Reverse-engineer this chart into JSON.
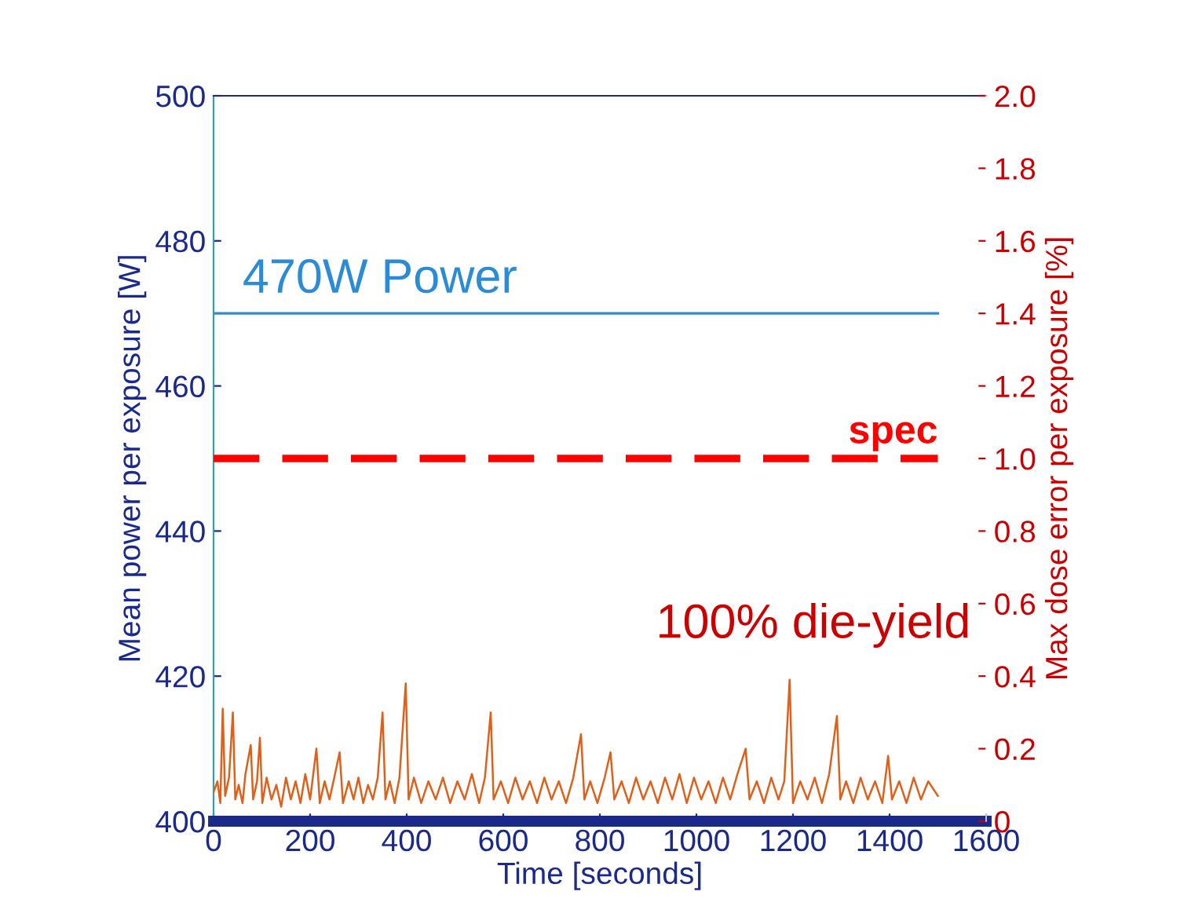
{
  "chart_data": {
    "type": "line",
    "xlabel": "Time [seconds]",
    "ylabel": "Mean power per exposure [W]",
    "y2label": "Max dose error per exposure [%]",
    "xlim": [
      0,
      1600
    ],
    "xticks": [
      0,
      200,
      400,
      600,
      800,
      1000,
      1200,
      1400,
      1600
    ],
    "ylim": [
      400,
      500
    ],
    "yticks": [
      400,
      420,
      440,
      460,
      480,
      500
    ],
    "y2lim": [
      0,
      2.0
    ],
    "y2ticks": [
      {
        "value": 0,
        "label": "0"
      },
      {
        "value": 0.2,
        "label": "0.2"
      },
      {
        "value": 0.4,
        "label": "0.4"
      },
      {
        "value": 0.6,
        "label": "0.6"
      },
      {
        "value": 0.8,
        "label": "0.8"
      },
      {
        "value": 1.0,
        "label": "1.0"
      },
      {
        "value": 1.2,
        "label": "1.2"
      },
      {
        "value": 1.4,
        "label": "1.4"
      },
      {
        "value": 1.6,
        "label": "1.6"
      },
      {
        "value": 1.8,
        "label": "1.8"
      },
      {
        "value": 2.0,
        "label": "2.0"
      }
    ],
    "grid": false,
    "marker": "none",
    "line_style": "solid",
    "series": [
      {
        "name": "470W Power",
        "color": "#2a8bd6",
        "x": [
          0,
          1500
        ],
        "values": [
          470,
          470
        ]
      },
      {
        "color": "#e0601a",
        "axis": "y2",
        "x": [
          0,
          8,
          14,
          19,
          24,
          32,
          40,
          45,
          52,
          60,
          66,
          77,
          82,
          90,
          96,
          101,
          110,
          120,
          130,
          140,
          150,
          160,
          170,
          180,
          190,
          200,
          213,
          220,
          230,
          240,
          250,
          261,
          268,
          280,
          290,
          300,
          310,
          320,
          330,
          340,
          350,
          356,
          365,
          375,
          385,
          398,
          404,
          415,
          430,
          445,
          460,
          475,
          490,
          505,
          520,
          535,
          550,
          562,
          574,
          580,
          595,
          610,
          625,
          640,
          655,
          670,
          685,
          700,
          715,
          730,
          745,
          761,
          768,
          780,
          795,
          810,
          822,
          830,
          845,
          860,
          875,
          890,
          905,
          920,
          935,
          950,
          965,
          980,
          995,
          1010,
          1025,
          1040,
          1055,
          1070,
          1085,
          1102,
          1110,
          1125,
          1140,
          1155,
          1170,
          1182,
          1193,
          1200,
          1215,
          1230,
          1245,
          1260,
          1275,
          1291,
          1298,
          1310,
          1325,
          1340,
          1355,
          1370,
          1385,
          1397,
          1405,
          1420,
          1435,
          1450,
          1465,
          1480,
          1500
        ],
        "values": [
          0.08,
          0.11,
          0.05,
          0.31,
          0.07,
          0.12,
          0.3,
          0.06,
          0.1,
          0.05,
          0.13,
          0.21,
          0.06,
          0.11,
          0.23,
          0.05,
          0.12,
          0.06,
          0.1,
          0.04,
          0.12,
          0.06,
          0.11,
          0.05,
          0.13,
          0.06,
          0.2,
          0.05,
          0.11,
          0.06,
          0.12,
          0.19,
          0.05,
          0.11,
          0.06,
          0.12,
          0.05,
          0.1,
          0.06,
          0.12,
          0.3,
          0.06,
          0.11,
          0.05,
          0.12,
          0.38,
          0.06,
          0.12,
          0.05,
          0.11,
          0.06,
          0.12,
          0.05,
          0.11,
          0.06,
          0.13,
          0.05,
          0.12,
          0.3,
          0.06,
          0.11,
          0.05,
          0.12,
          0.06,
          0.11,
          0.05,
          0.12,
          0.06,
          0.11,
          0.05,
          0.12,
          0.24,
          0.06,
          0.11,
          0.05,
          0.12,
          0.19,
          0.06,
          0.11,
          0.05,
          0.12,
          0.06,
          0.11,
          0.05,
          0.12,
          0.06,
          0.13,
          0.05,
          0.12,
          0.06,
          0.11,
          0.05,
          0.12,
          0.06,
          0.13,
          0.2,
          0.06,
          0.11,
          0.05,
          0.12,
          0.06,
          0.11,
          0.39,
          0.05,
          0.11,
          0.06,
          0.12,
          0.05,
          0.13,
          0.29,
          0.06,
          0.11,
          0.05,
          0.12,
          0.06,
          0.11,
          0.05,
          0.18,
          0.06,
          0.11,
          0.05,
          0.12,
          0.06,
          0.11,
          0.07
        ]
      }
    ],
    "ref_lines": [
      {
        "axis": "y2",
        "value": 1.0,
        "label": "spec",
        "color": "#ff0000",
        "line_style": "dashed"
      }
    ],
    "annotations": [
      "100% die-yield"
    ]
  }
}
